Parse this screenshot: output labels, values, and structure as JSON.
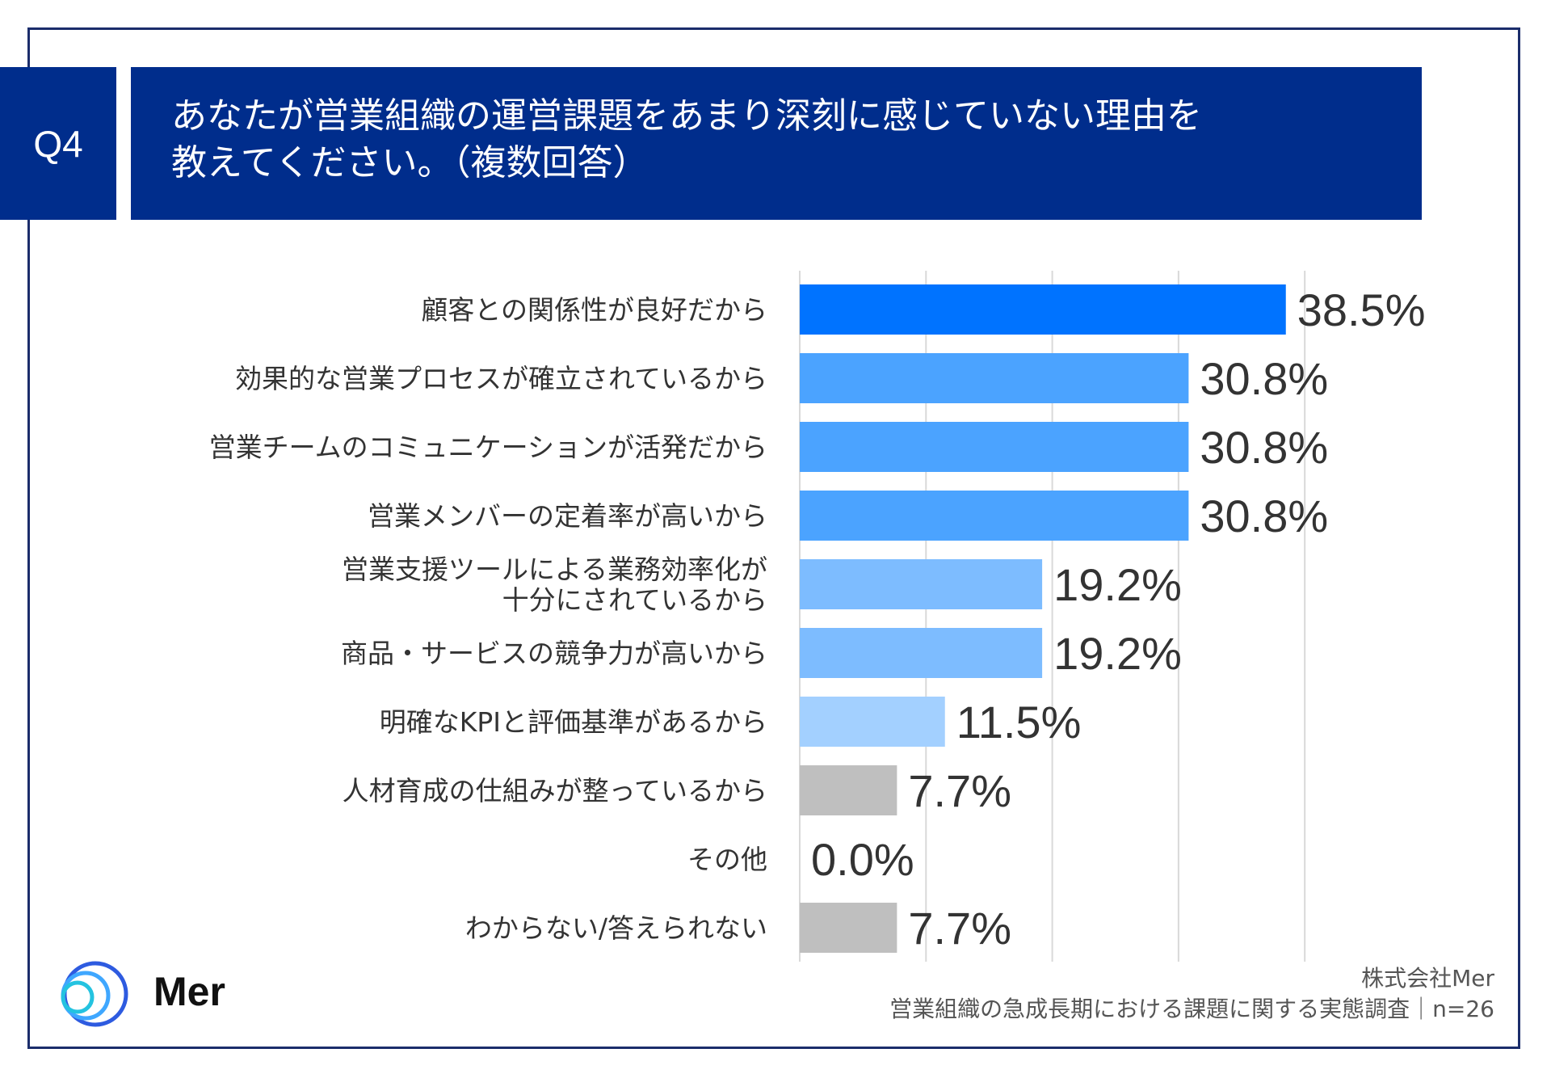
{
  "header": {
    "question_number": "Q4",
    "title_line1": "あなたが営業組織の運営課題をあまり深刻に感じていない理由を",
    "title_line2": "教えてください。（複数回答）"
  },
  "chart_data": {
    "type": "bar",
    "orientation": "horizontal",
    "categories": [
      [
        "顧客との関係性が良好だから"
      ],
      [
        "効果的な営業プロセスが確立されているから"
      ],
      [
        "営業チームのコミュニケーションが活発だから"
      ],
      [
        "営業メンバーの定着率が高いから"
      ],
      [
        "営業支援ツールによる業務効率化が",
        "十分にされているから"
      ],
      [
        "商品・サービスの競争力が高いから"
      ],
      [
        "明確なKPIと評価基準があるから"
      ],
      [
        "人材育成の仕組みが整っているから"
      ],
      [
        "その他"
      ],
      [
        "わからない/答えられない"
      ]
    ],
    "values": [
      38.5,
      30.8,
      30.8,
      30.8,
      19.2,
      19.2,
      11.5,
      7.7,
      0.0,
      7.7
    ],
    "value_labels": [
      "38.5%",
      "30.8%",
      "30.8%",
      "30.8%",
      "19.2%",
      "19.2%",
      "11.5%",
      "7.7%",
      "0.0%",
      "7.7%"
    ],
    "colors": [
      "#0073ff",
      "#4ba3ff",
      "#4ba3ff",
      "#4ba3ff",
      "#7dbcff",
      "#7dbcff",
      "#a3d0ff",
      "#bfbfbf",
      "#bfbfbf",
      "#bfbfbf"
    ],
    "xlim": [
      0,
      40
    ],
    "gridlines": [
      0,
      10,
      20,
      30,
      40
    ],
    "grid": true,
    "legend": "none"
  },
  "footer": {
    "company": "株式会社Mer",
    "survey": "営業組織の急成長期における課題に関する実態調査｜n=26"
  },
  "logo": {
    "text": "Mer",
    "colors": [
      "#3fa7ff",
      "#2e5be0",
      "#24c3e0"
    ]
  }
}
